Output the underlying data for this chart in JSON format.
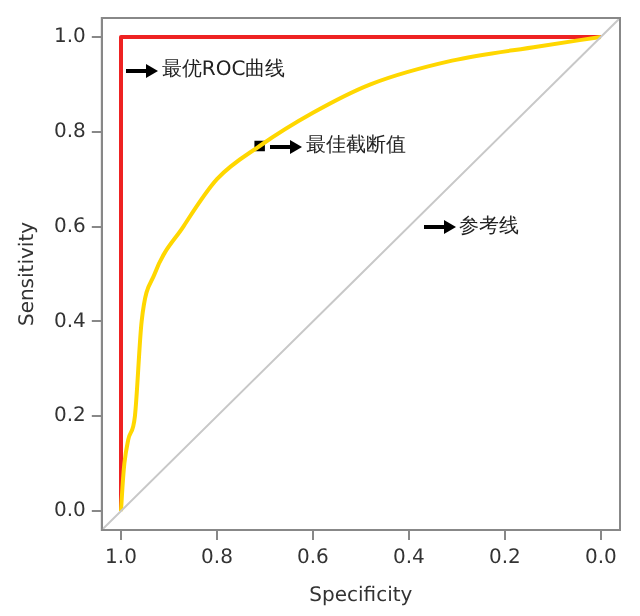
{
  "chart_data": {
    "type": "line",
    "xlabel": "Specificity",
    "ylabel": "Sensitivity",
    "xlim": [
      1.04,
      -0.04
    ],
    "ylim": [
      -0.04,
      1.04
    ],
    "xticks": [
      {
        "value": 1,
        "label": "1.0"
      },
      0.8,
      0.6,
      0.4,
      0.2,
      {
        "value": 0,
        "label": "0.0"
      }
    ],
    "yticks": [
      {
        "value": 0,
        "label": "0.0"
      },
      0.2,
      0.4,
      0.6,
      0.8,
      {
        "value": 1,
        "label": "1.0"
      }
    ],
    "grid": false,
    "legend": false,
    "line_style": "solid",
    "series": [
      {
        "color": "#c8c8c8",
        "x": [
          1.04,
          -0.04
        ],
        "values": [
          -0.04,
          1.04
        ]
      },
      {
        "color": "#ffd700",
        "x": [
          1,
          0.997,
          0.993,
          0.985,
          0.971,
          0.957,
          0.93,
          0.87,
          0.8,
          0.711,
          0.6,
          0.48,
          0.31,
          0.13,
          0
        ],
        "values": [
          0,
          0.05,
          0.1,
          0.15,
          0.2,
          0.4,
          0.5,
          0.6,
          0.7,
          0.77,
          0.84,
          0.9,
          0.95,
          0.98,
          1
        ]
      },
      {
        "color": "#ee2222",
        "x": [
          1,
          1,
          0
        ],
        "values": [
          0,
          1,
          1
        ]
      },
      {
        "type": "scatter",
        "marker": "square",
        "color": "#000000",
        "x": [
          0.711
        ],
        "values": [
          0.77
        ]
      }
    ],
    "annotations": [
      {
        "text": "最优ROC曲线",
        "x": 0.99,
        "y": 0.93
      },
      {
        "text": "最佳截断值",
        "x": 0.69,
        "y": 0.77
      },
      {
        "text": "参考线",
        "x": 0.37,
        "y": 0.6
      }
    ]
  }
}
